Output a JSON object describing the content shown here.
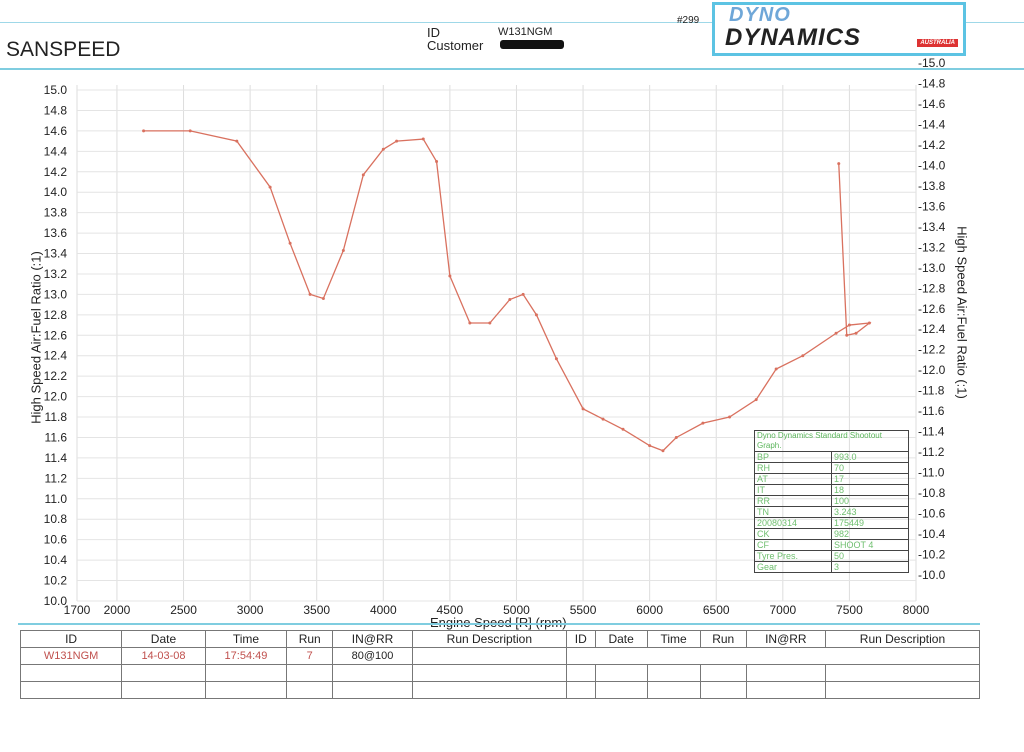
{
  "header": {
    "title": "SANSPEED",
    "id_label": "ID",
    "customer_label": "Customer",
    "id_value": "W131NGM",
    "sheet_number": "#299",
    "logo_text": [
      "DYNO",
      "DYNAMICS",
      "AUSTRALIA"
    ]
  },
  "chart_data": {
    "type": "line",
    "xlabel": "Engine Speed [R] (rpm)",
    "ylabel": "High Speed Air:Fuel Ratio (:1)",
    "y2label": "High Speed Air:Fuel Ratio (:1)",
    "xlim": [
      1700,
      8000
    ],
    "ylim": [
      10.0,
      15.0
    ],
    "y2lim": [
      10.0,
      15.0
    ],
    "xticks": [
      "1700",
      "2000",
      "2500",
      "3000",
      "3500",
      "4000",
      "4500",
      "5000",
      "5500",
      "6000",
      "6500",
      "7000",
      "7500",
      "8000"
    ],
    "yticks": [
      "10.0",
      "10.2",
      "10.4",
      "10.6",
      "10.8",
      "11.0",
      "11.2",
      "11.4",
      "11.6",
      "11.8",
      "12.0",
      "12.2",
      "12.4",
      "12.6",
      "12.8",
      "13.0",
      "13.2",
      "13.4",
      "13.6",
      "13.8",
      "14.0",
      "14.2",
      "14.4",
      "14.6",
      "14.8",
      "15.0"
    ],
    "y2ticks": [
      "-10.0",
      "-10.2",
      "-10.4",
      "-10.6",
      "-10.8",
      "-11.0",
      "-11.2",
      "-11.4",
      "-11.6",
      "-11.8",
      "-12.0",
      "-12.2",
      "-12.4",
      "-12.6",
      "-12.8",
      "-13.0",
      "-13.2",
      "-13.4",
      "-13.6",
      "-13.8",
      "-14.0",
      "-14.2",
      "-14.4",
      "-14.6",
      "-14.8",
      "-15.0"
    ],
    "grid": true,
    "series": [
      {
        "name": "Run 7",
        "color": "#d9715f",
        "x": [
          2200,
          2550,
          2900,
          3150,
          3300,
          3450,
          3550,
          3700,
          3850,
          4000,
          4100,
          4300,
          4400,
          4500,
          4650,
          4800,
          4950,
          5050,
          5150,
          5300,
          5500,
          5650,
          5800,
          6000,
          6100,
          6200,
          6400,
          6600,
          6800,
          6950,
          7150,
          7400,
          7500,
          7650,
          7550,
          7480,
          7420
        ],
        "y": [
          14.6,
          14.6,
          14.5,
          14.05,
          13.5,
          13.0,
          12.96,
          13.43,
          14.17,
          14.42,
          14.5,
          14.52,
          14.3,
          13.18,
          12.72,
          12.72,
          12.95,
          13.0,
          12.8,
          12.37,
          11.88,
          11.78,
          11.68,
          11.52,
          11.47,
          11.6,
          11.74,
          11.8,
          11.97,
          12.27,
          12.4,
          12.62,
          12.7,
          12.72,
          12.62,
          12.6,
          14.28
        ]
      }
    ]
  },
  "shootout": {
    "title": "Dyno Dynamics Standard Shootout Graph.",
    "rows": [
      [
        "BP",
        "993.0"
      ],
      [
        "RH",
        "70"
      ],
      [
        "AT",
        "17"
      ],
      [
        "IT",
        "18"
      ],
      [
        "RR",
        "100"
      ],
      [
        "TN",
        "3.243"
      ],
      [
        "20080314",
        "175449"
      ],
      [
        "CK",
        "982"
      ],
      [
        "CF",
        "SHOOT 4"
      ],
      [
        "Tyre Pres.",
        "50"
      ],
      [
        "Gear",
        "3"
      ]
    ]
  },
  "runs": {
    "headers": [
      "ID",
      "Date",
      "Time",
      "Run",
      "IN@RR",
      "Run Description",
      "ID",
      "Date",
      "Time",
      "Run",
      "IN@RR",
      "Run Description"
    ],
    "rows": [
      [
        "W131NGM",
        "14-03-08",
        "17:54:49",
        "7",
        "80@100",
        ""
      ]
    ]
  }
}
